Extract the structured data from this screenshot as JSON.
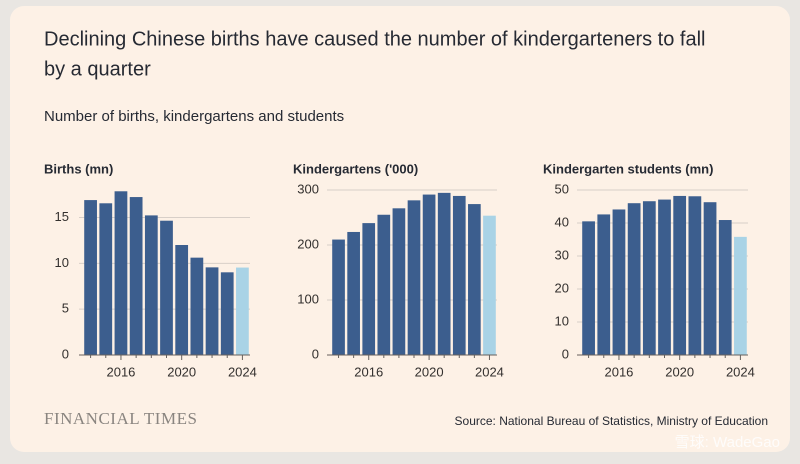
{
  "title": [
    "Declining Chinese births have caused the number of kindergarteners to fall",
    "by a quarter"
  ],
  "subtitle": "Number of births, kindergartens and students",
  "brand": "FINANCIAL TIMES",
  "source": "Source: National Bureau of Statistics, Ministry of Education",
  "watermark": "雪球: WadeGao",
  "chart_data": [
    {
      "type": "bar",
      "title": "Births (mn)",
      "categories": [
        null,
        null,
        "2016",
        null,
        null,
        null,
        "2020",
        null,
        null,
        null,
        "2024"
      ],
      "values": [
        16.9,
        16.55,
        17.86,
        17.23,
        15.23,
        14.65,
        12.0,
        10.62,
        9.56,
        9.02,
        9.54
      ],
      "colors": [
        "#3c5e8e",
        "#3c5e8e",
        "#3c5e8e",
        "#3c5e8e",
        "#3c5e8e",
        "#3c5e8e",
        "#3c5e8e",
        "#3c5e8e",
        "#3c5e8e",
        "#3c5e8e",
        "#a9d3e6"
      ],
      "ylim": [
        0,
        18
      ],
      "yticks": [
        0,
        5,
        10,
        15
      ],
      "grid": true
    },
    {
      "type": "bar",
      "title": "Kindergartens ('000)",
      "categories": [
        null,
        null,
        "2016",
        null,
        null,
        null,
        "2020",
        null,
        null,
        null,
        "2024"
      ],
      "values": [
        209.9,
        223.7,
        239.8,
        255,
        266.7,
        281.2,
        291.7,
        294.8,
        289.2,
        274.4,
        253.3
      ],
      "colors": [
        "#3c5e8e",
        "#3c5e8e",
        "#3c5e8e",
        "#3c5e8e",
        "#3c5e8e",
        "#3c5e8e",
        "#3c5e8e",
        "#3c5e8e",
        "#3c5e8e",
        "#3c5e8e",
        "#a9d3e6"
      ],
      "ylim": [
        0,
        300
      ],
      "yticks": [
        0,
        100,
        200,
        300
      ],
      "grid": true
    },
    {
      "type": "bar",
      "title": "Kindergarten students (mn)",
      "categories": [
        null,
        null,
        "2016",
        null,
        null,
        null,
        "2020",
        null,
        null,
        null,
        "2024"
      ],
      "values": [
        40.5,
        42.6,
        44.1,
        46.0,
        46.6,
        47.1,
        48.2,
        48.1,
        46.3,
        40.9,
        35.8
      ],
      "colors": [
        "#3c5e8e",
        "#3c5e8e",
        "#3c5e8e",
        "#3c5e8e",
        "#3c5e8e",
        "#3c5e8e",
        "#3c5e8e",
        "#3c5e8e",
        "#3c5e8e",
        "#3c5e8e",
        "#a9d3e6"
      ],
      "ylim": [
        0,
        50
      ],
      "yticks": [
        0,
        10,
        20,
        30,
        40,
        50
      ],
      "grid": true
    }
  ]
}
